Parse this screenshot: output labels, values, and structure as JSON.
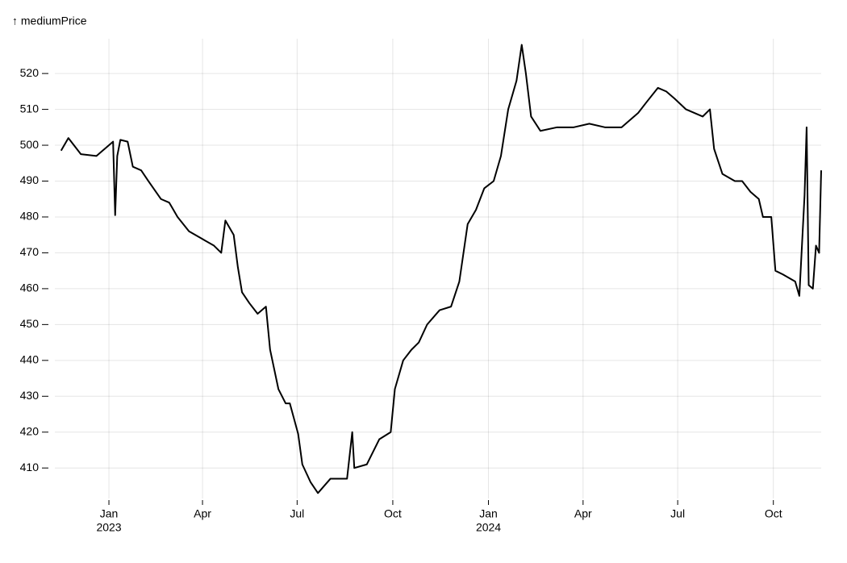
{
  "chart_data": {
    "type": "line",
    "y_label": "↑ mediumPrice",
    "x": [
      "2022-11-16",
      "2022-11-23",
      "2022-12-05",
      "2022-12-20",
      "2022-12-28",
      "2023-01-05",
      "2023-01-07",
      "2023-01-09",
      "2023-01-12",
      "2023-01-19",
      "2023-01-24",
      "2023-02-01",
      "2023-02-08",
      "2023-02-20",
      "2023-02-28",
      "2023-03-08",
      "2023-03-19",
      "2023-03-31",
      "2023-04-12",
      "2023-04-19",
      "2023-04-23",
      "2023-05-01",
      "2023-05-05",
      "2023-05-09",
      "2023-05-16",
      "2023-05-24",
      "2023-06-01",
      "2023-06-05",
      "2023-06-13",
      "2023-06-20",
      "2023-06-24",
      "2023-07-02",
      "2023-07-06",
      "2023-07-14",
      "2023-07-21",
      "2023-08-02",
      "2023-08-18",
      "2023-08-23",
      "2023-08-25",
      "2023-09-06",
      "2023-09-18",
      "2023-09-29",
      "2023-10-03",
      "2023-10-11",
      "2023-10-19",
      "2023-10-26",
      "2023-11-03",
      "2023-11-15",
      "2023-11-26",
      "2023-12-04",
      "2023-12-12",
      "2023-12-20",
      "2023-12-28",
      "2024-01-06",
      "2024-01-13",
      "2024-01-20",
      "2024-01-28",
      "2024-02-02",
      "2024-02-06",
      "2024-02-11",
      "2024-02-20",
      "2024-03-07",
      "2024-03-23",
      "2024-04-07",
      "2024-04-22",
      "2024-05-08",
      "2024-05-24",
      "2024-06-01",
      "2024-06-12",
      "2024-06-20",
      "2024-06-28",
      "2024-07-09",
      "2024-07-25",
      "2024-08-01",
      "2024-08-05",
      "2024-08-13",
      "2024-08-25",
      "2024-09-01",
      "2024-09-09",
      "2024-09-17",
      "2024-09-21",
      "2024-09-29",
      "2024-10-03",
      "2024-10-10",
      "2024-10-22",
      "2024-10-26",
      "2024-10-31",
      "2024-11-02",
      "2024-11-04",
      "2024-11-08",
      "2024-11-11",
      "2024-11-14",
      "2024-11-16"
    ],
    "values": [
      498.5,
      502,
      497.5,
      497,
      499,
      501,
      480.5,
      497,
      501.5,
      501,
      494,
      493,
      490,
      485,
      484,
      480,
      476,
      474,
      472,
      470,
      479,
      475,
      466,
      459,
      456,
      453,
      455,
      443,
      432,
      428,
      428,
      419.5,
      411,
      406,
      403,
      407,
      407,
      420,
      410,
      411,
      418,
      420,
      432,
      440,
      443,
      445,
      450,
      454,
      455,
      462,
      478,
      482,
      488,
      490,
      497,
      510,
      518,
      528,
      520,
      508,
      504,
      505,
      505,
      506,
      505,
      505,
      509,
      512,
      516,
      515,
      513,
      510,
      508,
      510,
      499,
      492,
      490,
      490,
      487,
      485,
      480,
      480,
      465,
      464,
      462,
      458,
      486,
      505,
      461,
      460,
      472,
      470,
      493
    ],
    "color": "#000000",
    "xlim": [
      "2022-11-10",
      "2024-11-16"
    ],
    "xticks": [
      {
        "value": "2023-01-01",
        "label": "Jan",
        "year": "2023"
      },
      {
        "value": "2023-04-01",
        "label": "Apr"
      },
      {
        "value": "2023-07-01",
        "label": "Jul"
      },
      {
        "value": "2023-10-01",
        "label": "Oct"
      },
      {
        "value": "2024-01-01",
        "label": "Jan",
        "year": "2024"
      },
      {
        "value": "2024-04-01",
        "label": "Apr"
      },
      {
        "value": "2024-07-01",
        "label": "Jul"
      },
      {
        "value": "2024-10-01",
        "label": "Oct"
      }
    ],
    "ylim": [
      401.5,
      529.7
    ],
    "yticks": [
      410,
      420,
      430,
      440,
      450,
      460,
      470,
      480,
      490,
      500,
      510,
      520
    ],
    "grid": true
  }
}
